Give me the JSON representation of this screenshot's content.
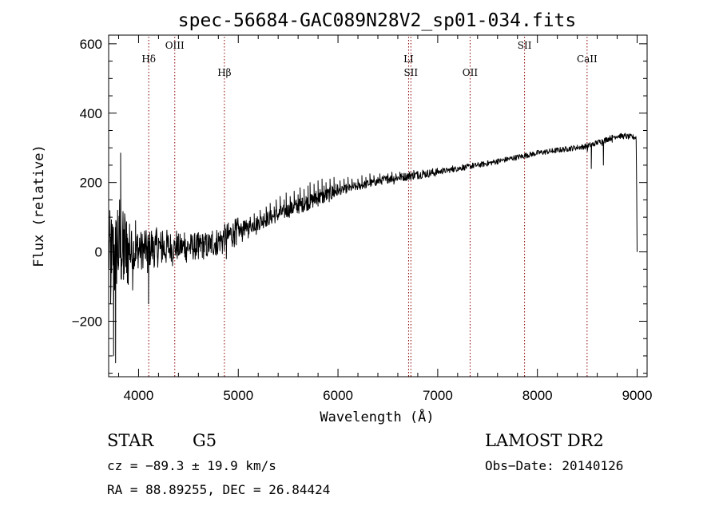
{
  "chart_data": {
    "type": "line",
    "title": "spec-56684-GAC089N28V2_sp01-034.fits",
    "xlabel": "Wavelength (Å)",
    "ylabel": "Flux (relative)",
    "xlim": [
      3700,
      9100
    ],
    "ylim": [
      -360,
      625
    ],
    "x_ticks": [
      "4000",
      "5000",
      "6000",
      "7000",
      "8000",
      "9000"
    ],
    "x_tick_values": [
      4000,
      5000,
      6000,
      7000,
      8000,
      9000
    ],
    "y_ticks": [
      "600",
      "400",
      "200",
      "0",
      "−200"
    ],
    "y_tick_values": [
      600,
      400,
      200,
      0,
      -200
    ],
    "grid": false,
    "line_color": "#000000",
    "marker_color": "#8b0000",
    "lines": [
      {
        "label": "Hδ",
        "wavelength": 4102,
        "row": 1
      },
      {
        "label": "OIII",
        "wavelength": 4363,
        "row": 0
      },
      {
        "label": "Hβ",
        "wavelength": 4861,
        "row": 2
      },
      {
        "label": "LI",
        "wavelength": 6708,
        "row": 1
      },
      {
        "label": "SII",
        "wavelength": 6731,
        "row": 2
      },
      {
        "label": "OII",
        "wavelength": 7325,
        "row": 2
      },
      {
        "label": "SII",
        "wavelength": 7871,
        "row": 0
      },
      {
        "label": "CaII",
        "wavelength": 8498,
        "row": 1
      }
    ],
    "series": [
      {
        "continuum": [
          [
            3700,
            0
          ],
          [
            4200,
            10
          ],
          [
            4700,
            18
          ],
          [
            5000,
            60
          ],
          [
            5500,
            120
          ],
          [
            6000,
            175
          ],
          [
            6500,
            210
          ],
          [
            7000,
            230
          ],
          [
            7500,
            255
          ],
          [
            8000,
            285
          ],
          [
            8500,
            305
          ],
          [
            8800,
            335
          ],
          [
            8990,
            330
          ]
        ],
        "points": [
          [
            3700,
            -20
          ],
          [
            3710,
            30
          ],
          [
            3720,
            -150
          ],
          [
            3730,
            -60
          ],
          [
            3740,
            40
          ],
          [
            3750,
            -300
          ],
          [
            3760,
            -110
          ],
          [
            3770,
            -320
          ],
          [
            3780,
            -50
          ],
          [
            3790,
            120
          ],
          [
            3800,
            -40
          ],
          [
            3810,
            150
          ],
          [
            3820,
            285
          ],
          [
            3830,
            -20
          ],
          [
            3840,
            60
          ],
          [
            3850,
            -80
          ],
          [
            3860,
            110
          ],
          [
            3870,
            20
          ],
          [
            3880,
            -60
          ],
          [
            3890,
            40
          ],
          [
            3900,
            -10
          ],
          [
            3910,
            80
          ],
          [
            3920,
            -30
          ],
          [
            3930,
            60
          ],
          [
            3940,
            -110
          ],
          [
            3950,
            30
          ],
          [
            3960,
            -40
          ],
          [
            3970,
            90
          ],
          [
            3980,
            -20
          ],
          [
            3990,
            50
          ],
          [
            4000,
            -10
          ],
          [
            4010,
            40
          ],
          [
            4020,
            10
          ],
          [
            4030,
            -50
          ],
          [
            4040,
            30
          ],
          [
            4050,
            0
          ],
          [
            4060,
            60
          ],
          [
            4070,
            -20
          ],
          [
            4080,
            20
          ],
          [
            4090,
            -60
          ],
          [
            4100,
            -150
          ],
          [
            4110,
            40
          ],
          [
            4120,
            -10
          ],
          [
            4130,
            60
          ],
          [
            4140,
            0
          ],
          [
            4150,
            30
          ],
          [
            4160,
            -40
          ],
          [
            4170,
            20
          ],
          [
            4180,
            70
          ],
          [
            4190,
            -20
          ],
          [
            4200,
            40
          ],
          [
            4220,
            10
          ],
          [
            4240,
            60
          ],
          [
            4260,
            -10
          ],
          [
            4280,
            30
          ],
          [
            4300,
            0
          ],
          [
            4320,
            50
          ],
          [
            4340,
            -40
          ],
          [
            4360,
            20
          ],
          [
            4380,
            60
          ],
          [
            4400,
            -10
          ],
          [
            4420,
            30
          ],
          [
            4440,
            5
          ],
          [
            4460,
            55
          ],
          [
            4480,
            -30
          ],
          [
            4500,
            20
          ],
          [
            4520,
            -5
          ],
          [
            4540,
            45
          ],
          [
            4560,
            0
          ],
          [
            4580,
            30
          ],
          [
            4600,
            -20
          ],
          [
            4620,
            20
          ],
          [
            4640,
            50
          ],
          [
            4660,
            10
          ],
          [
            4680,
            -10
          ],
          [
            4700,
            40
          ],
          [
            4720,
            10
          ],
          [
            4740,
            60
          ],
          [
            4760,
            20
          ],
          [
            4780,
            -10
          ],
          [
            4800,
            30
          ],
          [
            4820,
            50
          ],
          [
            4840,
            -5
          ],
          [
            4860,
            20
          ],
          [
            4880,
            -20
          ],
          [
            4900,
            40
          ],
          [
            4920,
            70
          ],
          [
            4940,
            30
          ],
          [
            4960,
            60
          ],
          [
            4980,
            20
          ],
          [
            5000,
            80
          ],
          [
            5020,
            50
          ],
          [
            5040,
            30
          ],
          [
            5060,
            90
          ],
          [
            5080,
            60
          ],
          [
            5100,
            40
          ],
          [
            5120,
            100
          ],
          [
            5140,
            70
          ],
          [
            5160,
            110
          ],
          [
            5180,
            50
          ],
          [
            5200,
            90
          ],
          [
            5220,
            120
          ],
          [
            5240,
            80
          ],
          [
            5260,
            110
          ],
          [
            5280,
            130
          ],
          [
            5300,
            90
          ],
          [
            5320,
            140
          ],
          [
            5340,
            100
          ],
          [
            5360,
            130
          ],
          [
            5380,
            150
          ],
          [
            5400,
            110
          ],
          [
            5420,
            160
          ],
          [
            5440,
            120
          ],
          [
            5460,
            150
          ],
          [
            5480,
            170
          ],
          [
            5500,
            130
          ],
          [
            5520,
            160
          ],
          [
            5540,
            140
          ],
          [
            5560,
            175
          ],
          [
            5580,
            150
          ],
          [
            5600,
            165
          ],
          [
            5620,
            185
          ],
          [
            5640,
            155
          ],
          [
            5660,
            180
          ],
          [
            5680,
            160
          ],
          [
            5700,
            190
          ],
          [
            5720,
            200
          ],
          [
            5740,
            165
          ],
          [
            5760,
            195
          ],
          [
            5780,
            175
          ],
          [
            5800,
            205
          ],
          [
            5820,
            180
          ],
          [
            5840,
            210
          ],
          [
            5860,
            190
          ],
          [
            5880,
            200
          ],
          [
            5900,
            180
          ],
          [
            5920,
            210
          ],
          [
            5940,
            190
          ],
          [
            5960,
            215
          ],
          [
            5980,
            195
          ],
          [
            6000,
            180
          ],
          [
            6020,
            205
          ],
          [
            6040,
            185
          ],
          [
            6060,
            210
          ],
          [
            6080,
            195
          ],
          [
            6100,
            215
          ],
          [
            6120,
            190
          ],
          [
            6140,
            210
          ],
          [
            6160,
            200
          ],
          [
            6180,
            185
          ],
          [
            6200,
            210
          ],
          [
            6220,
            195
          ],
          [
            6240,
            220
          ],
          [
            6260,
            200
          ],
          [
            6280,
            215
          ],
          [
            6300,
            205
          ],
          [
            6320,
            225
          ],
          [
            6340,
            200
          ],
          [
            6360,
            220
          ],
          [
            6380,
            205
          ],
          [
            6400,
            215
          ],
          [
            6420,
            225
          ],
          [
            6440,
            210
          ],
          [
            6460,
            220
          ],
          [
            6480,
            205
          ],
          [
            6500,
            225
          ],
          [
            6520,
            215
          ],
          [
            6540,
            230
          ],
          [
            6560,
            195
          ],
          [
            6580,
            225
          ],
          [
            6600,
            215
          ],
          [
            6620,
            230
          ],
          [
            6640,
            220
          ],
          [
            6660,
            225
          ],
          [
            6680,
            215
          ],
          [
            6700,
            225
          ],
          [
            6720,
            230
          ],
          [
            6740,
            225
          ],
          [
            6760,
            235
          ],
          [
            6780,
            228
          ],
          [
            6800,
            232
          ],
          [
            6850,
            236
          ],
          [
            6900,
            230
          ],
          [
            6950,
            240
          ],
          [
            7000,
            235
          ],
          [
            7050,
            242
          ],
          [
            7100,
            238
          ],
          [
            7150,
            248
          ],
          [
            7200,
            244
          ],
          [
            7250,
            252
          ],
          [
            7300,
            248
          ],
          [
            7350,
            256
          ],
          [
            7400,
            250
          ],
          [
            7450,
            258
          ],
          [
            7500,
            262
          ],
          [
            7550,
            258
          ],
          [
            7600,
            268
          ],
          [
            7650,
            262
          ],
          [
            7700,
            272
          ],
          [
            7750,
            268
          ],
          [
            7800,
            278
          ],
          [
            7850,
            272
          ],
          [
            7900,
            282
          ],
          [
            7950,
            278
          ],
          [
            8000,
            288
          ],
          [
            8050,
            284
          ],
          [
            8100,
            290
          ],
          [
            8150,
            286
          ],
          [
            8200,
            295
          ],
          [
            8250,
            290
          ],
          [
            8300,
            298
          ],
          [
            8350,
            293
          ],
          [
            8400,
            302
          ],
          [
            8450,
            296
          ],
          [
            8500,
            290
          ],
          [
            8510,
            305
          ],
          [
            8540,
            240
          ],
          [
            8560,
            305
          ],
          [
            8600,
            312
          ],
          [
            8650,
            306
          ],
          [
            8662,
            250
          ],
          [
            8680,
            314
          ],
          [
            8700,
            318
          ],
          [
            8750,
            316
          ],
          [
            8800,
            328
          ],
          [
            8850,
            336
          ],
          [
            8880,
            342
          ],
          [
            8900,
            338
          ],
          [
            8930,
            340
          ],
          [
            8960,
            330
          ],
          [
            8990,
            320
          ],
          [
            8995,
            190
          ],
          [
            9000,
            0
          ]
        ]
      }
    ]
  },
  "info": {
    "object_class": "STAR",
    "subclass": "G5",
    "survey": "LAMOST DR2",
    "cz": "cz = −89.3 ± 19.9 km/s",
    "obs_date": "Obs−Date: 20140126",
    "coords": "RA =  88.89255, DEC =  26.84424"
  }
}
